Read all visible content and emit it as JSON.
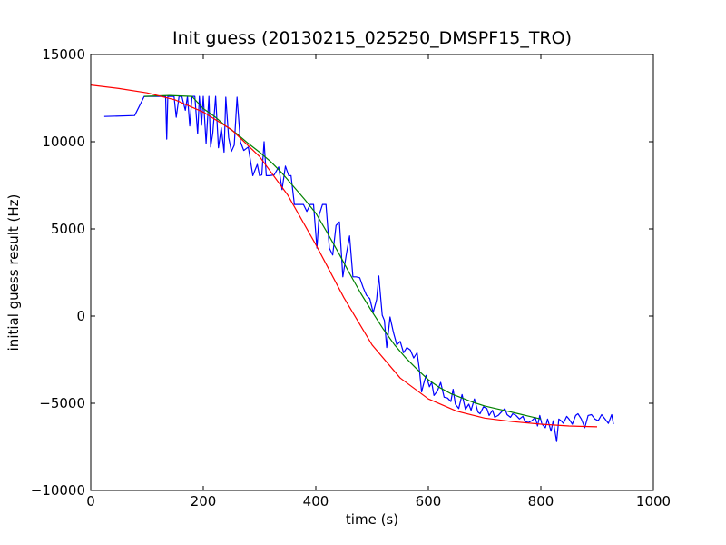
{
  "chart_data": {
    "type": "line",
    "title": "Init guess (20130215_025250_DMSPF15_TRO)",
    "xlabel": "time (s)",
    "ylabel": "initial guess result (Hz)",
    "xlim": [
      0,
      1000
    ],
    "ylim": [
      -10000,
      15000
    ],
    "xticks": [
      0,
      200,
      400,
      600,
      800,
      1000
    ],
    "xtick_labels": [
      "0",
      "200",
      "400",
      "600",
      "800",
      "1000"
    ],
    "yticks": [
      -10000,
      -5000,
      0,
      5000,
      10000,
      15000
    ],
    "ytick_labels": [
      "−10000",
      "−5000",
      "0",
      "5000",
      "10000",
      "15000"
    ],
    "grid": false,
    "legend": false,
    "series": [
      {
        "color": "#0000ff",
        "x": [
          24,
          78,
          95,
          133,
          135,
          137,
          142,
          148,
          152,
          157,
          162,
          168,
          172,
          176,
          180,
          185,
          190,
          193,
          197,
          200,
          205,
          210,
          213,
          217,
          222,
          227,
          232,
          237,
          240,
          245,
          250,
          255,
          260,
          266,
          272,
          280,
          288,
          296,
          300,
          304,
          308,
          312,
          318,
          326,
          334,
          340,
          346,
          352,
          356,
          362,
          366,
          372,
          378,
          384,
          390,
          396,
          402,
          406,
          412,
          418,
          424,
          430,
          436,
          442,
          448,
          454,
          460,
          466,
          472,
          478,
          484,
          490,
          496,
          502,
          508,
          512,
          518,
          522,
          526,
          532,
          538,
          544,
          550,
          556,
          562,
          568,
          574,
          580,
          584,
          588,
          592,
          596,
          602,
          606,
          610,
          616,
          622,
          628,
          634,
          640,
          644,
          648,
          654,
          660,
          666,
          672,
          676,
          682,
          688,
          692,
          698,
          704,
          708,
          714,
          718,
          724,
          730,
          736,
          740,
          746,
          750,
          756,
          762,
          768,
          772,
          778,
          784,
          790,
          794,
          798,
          802,
          808,
          812,
          818,
          822,
          828,
          832,
          836,
          840,
          846,
          850,
          856,
          862,
          866,
          872,
          878,
          884,
          890,
          896,
          902,
          908,
          914,
          920,
          926,
          929
        ],
        "y": [
          11450,
          11500,
          12600,
          12600,
          10150,
          12600,
          12600,
          12600,
          11400,
          12600,
          12600,
          11800,
          12600,
          10900,
          12600,
          12600,
          10450,
          12600,
          10950,
          12600,
          9900,
          12600,
          9700,
          10500,
          12600,
          9650,
          10800,
          9400,
          12550,
          10250,
          9450,
          9800,
          12550,
          10000,
          9500,
          9700,
          8050,
          8700,
          8050,
          8100,
          10000,
          8050,
          8050,
          8100,
          8550,
          7250,
          8600,
          8050,
          8050,
          6400,
          6400,
          6400,
          6400,
          6000,
          6400,
          6400,
          3900,
          5800,
          6400,
          6400,
          3900,
          3500,
          5200,
          5400,
          2250,
          3500,
          4600,
          2250,
          2250,
          2200,
          1650,
          1200,
          1000,
          200,
          950,
          2300,
          50,
          -250,
          -1800,
          -50,
          -950,
          -1650,
          -1450,
          -2100,
          -1800,
          -1950,
          -2400,
          -2100,
          -3050,
          -4350,
          -3850,
          -3400,
          -4050,
          -3800,
          -4550,
          -4300,
          -3800,
          -4650,
          -4700,
          -4900,
          -4200,
          -5050,
          -5300,
          -4500,
          -5350,
          -5050,
          -5400,
          -4750,
          -5500,
          -5600,
          -5200,
          -5300,
          -5700,
          -5400,
          -5800,
          -5700,
          -5500,
          -5300,
          -5650,
          -5800,
          -5600,
          -5700,
          -5900,
          -5750,
          -6050,
          -6100,
          -6000,
          -5800,
          -6300,
          -5700,
          -6200,
          -6400,
          -5900,
          -6600,
          -6000,
          -7200,
          -5900,
          -6000,
          -6150,
          -5750,
          -5900,
          -6200,
          -5700,
          -5600,
          -5900,
          -6400,
          -5700,
          -5650,
          -5900,
          -6000,
          -5650,
          -5900,
          -6150,
          -5650,
          -6200
        ],
        "notes": "raw guess (step-like noisy trace)"
      },
      {
        "color": "#008000",
        "x": [
          95,
          140,
          180,
          200,
          220,
          240,
          260,
          280,
          300,
          320,
          340,
          360,
          380,
          400,
          420,
          440,
          460,
          480,
          500,
          520,
          540,
          560,
          580,
          600,
          620,
          640,
          660,
          680,
          700,
          720,
          740,
          760,
          780,
          800
        ],
        "y": [
          12600,
          12650,
          12600,
          11900,
          11450,
          10900,
          10450,
          9900,
          9400,
          8850,
          8200,
          7450,
          6700,
          5900,
          4800,
          3650,
          2450,
          1300,
          250,
          -750,
          -1650,
          -2400,
          -3050,
          -3650,
          -4100,
          -4450,
          -4700,
          -4950,
          -5150,
          -5300,
          -5450,
          -5600,
          -5750,
          -5900
        ]
      },
      {
        "color": "#ff0000",
        "x": [
          0,
          50,
          100,
          150,
          200,
          250,
          300,
          350,
          400,
          450,
          500,
          550,
          600,
          650,
          700,
          750,
          800,
          850,
          900
        ],
        "y": [
          13250,
          13050,
          12800,
          12400,
          11700,
          10700,
          9150,
          6950,
          4100,
          1050,
          -1650,
          -3550,
          -4750,
          -5450,
          -5850,
          -6050,
          -6200,
          -6300,
          -6350
        ]
      }
    ]
  }
}
